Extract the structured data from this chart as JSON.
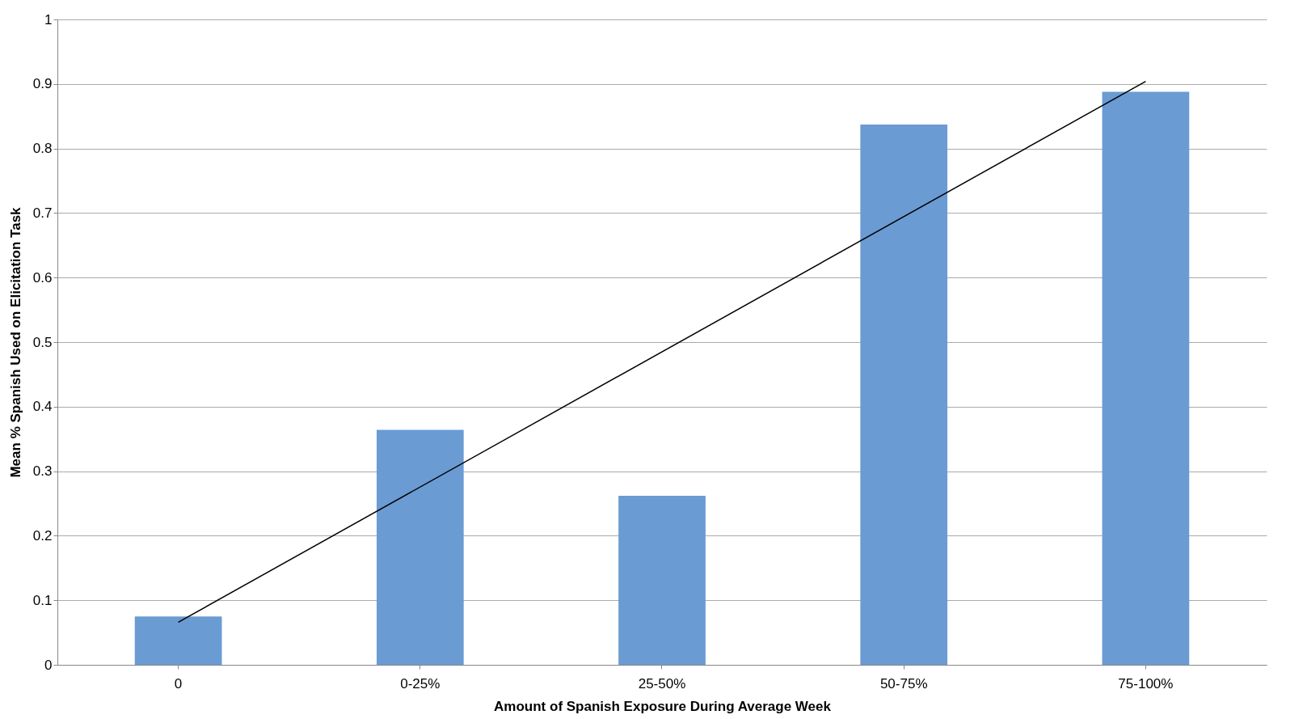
{
  "chart_data": {
    "type": "bar",
    "xlabel": "Amount of Spanish Exposure During Average Week",
    "ylabel": "Mean % Spanish Used on Elicitation Task",
    "categories": [
      "0",
      "0-25%",
      "25-50%",
      "50-75%",
      "75-100%"
    ],
    "series": [
      {
        "color": "#6a9bd3",
        "values": [
          0.075,
          0.364,
          0.262,
          0.837,
          0.888
        ]
      },
      {
        "type": "line",
        "color": "#000000",
        "x": [
          "0",
          "75-100%"
        ],
        "values": [
          0.066,
          0.904
        ]
      }
    ],
    "ylim": [
      0,
      1
    ],
    "yticks": [
      0,
      0.1,
      0.2,
      0.3,
      0.4,
      0.5,
      0.6,
      0.7,
      0.8,
      0.9,
      1
    ],
    "grid": "y",
    "marker": "none",
    "line_style": "solid"
  }
}
